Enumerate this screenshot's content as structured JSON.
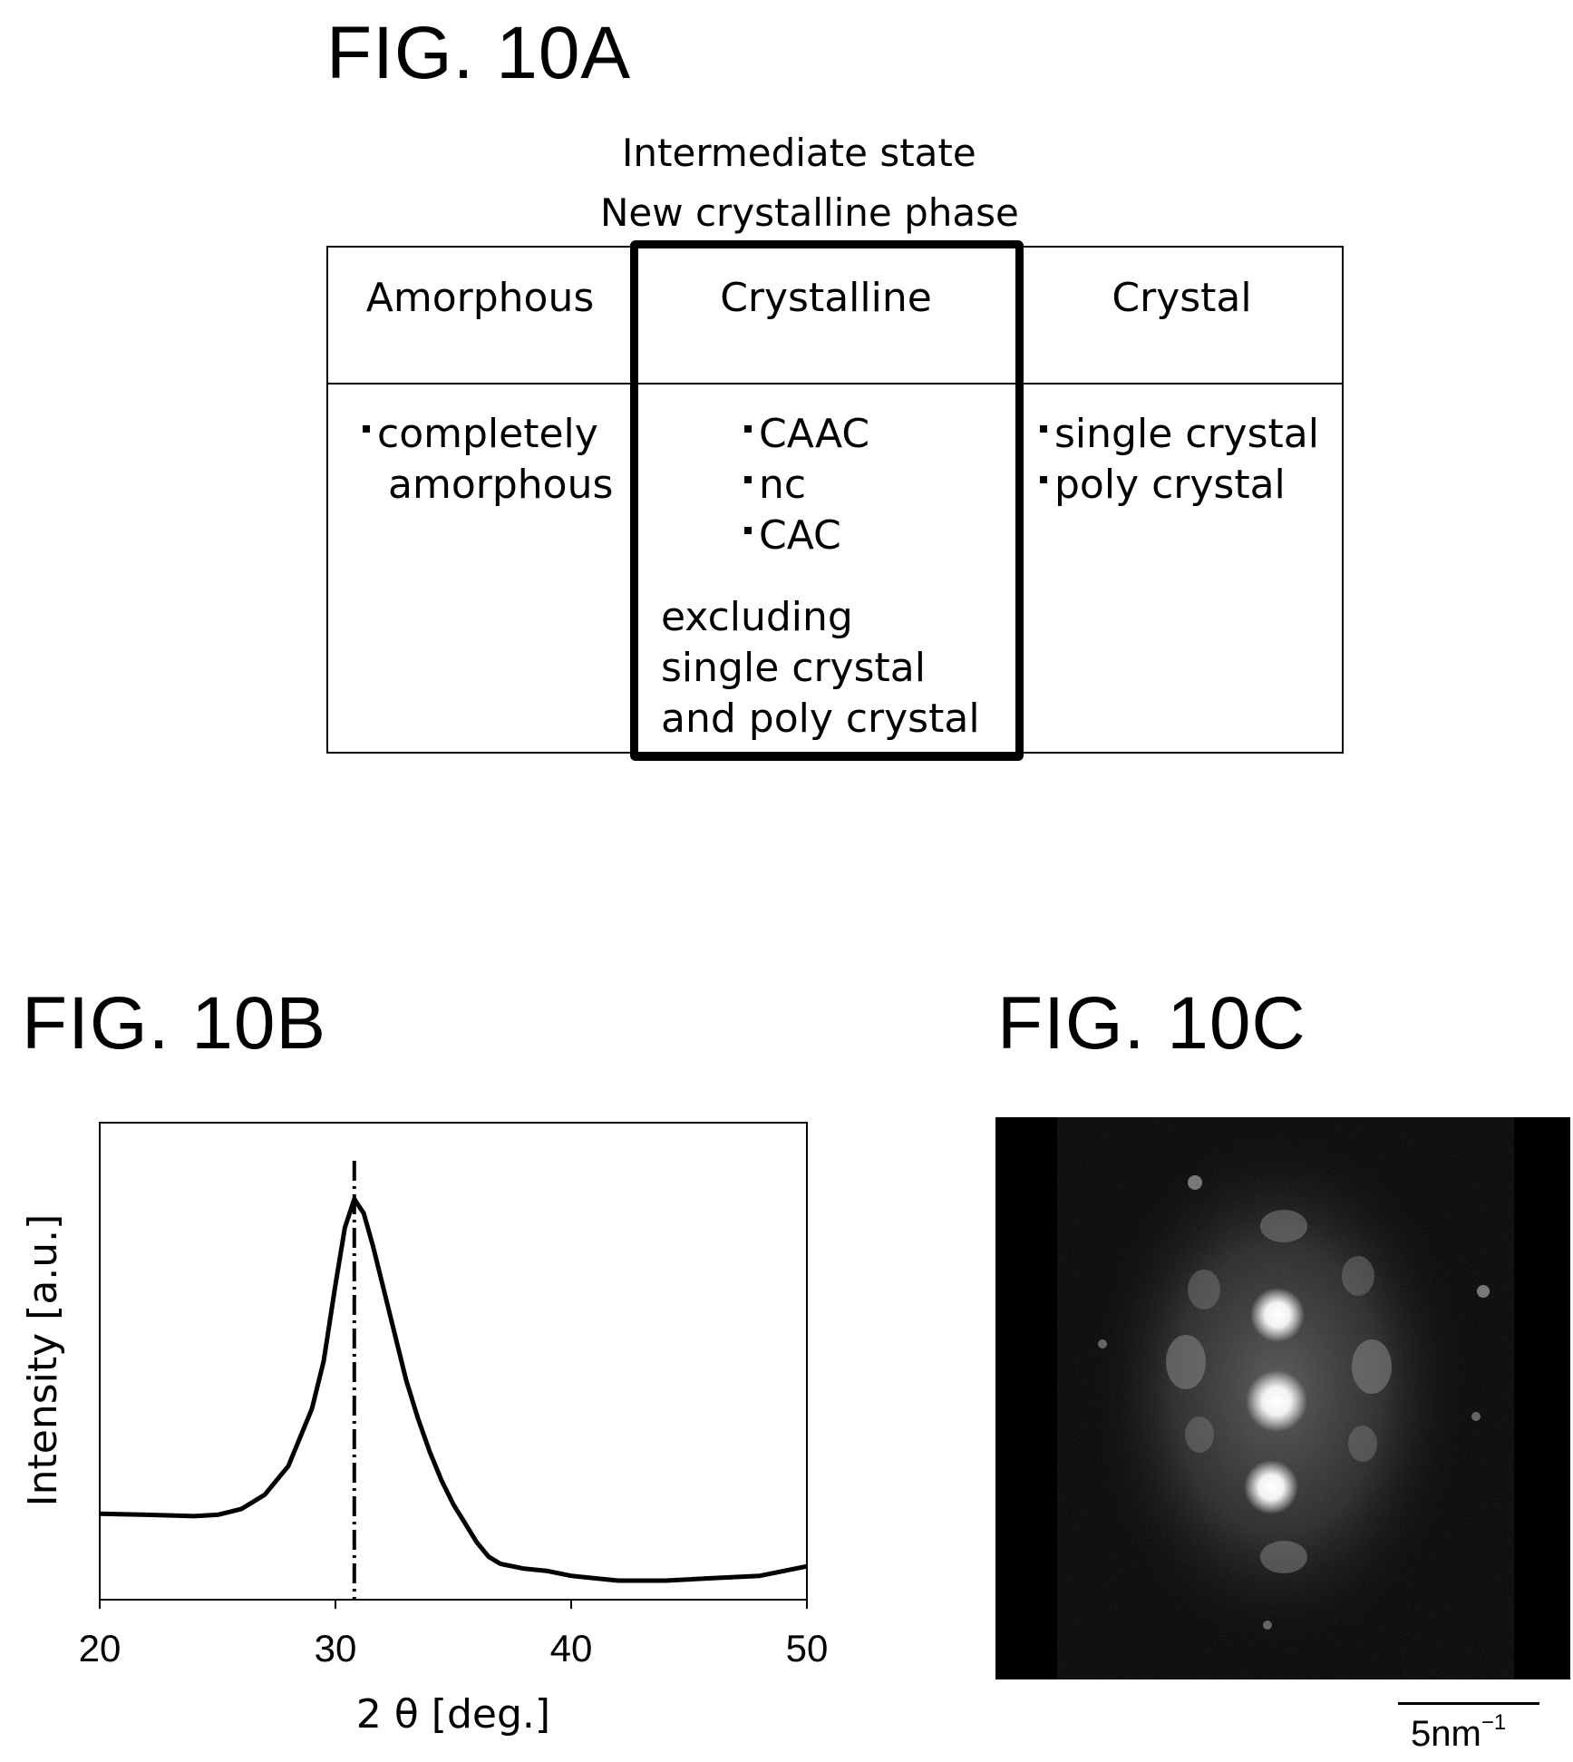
{
  "fig_a": {
    "title": "FIG. 10A",
    "caption_line1": "Intermediate state",
    "caption_line2": "New crystalline phase",
    "columns": [
      {
        "header": "Amorphous",
        "items": [
          "completely",
          "amorphous"
        ]
      },
      {
        "header": "Crystalline",
        "items": [
          "CAAC",
          "nc",
          "CAC"
        ],
        "note": [
          "excluding",
          "single crystal",
          "and poly crystal"
        ]
      },
      {
        "header": "Crystal",
        "items": [
          "single crystal",
          "poly crystal"
        ]
      }
    ]
  },
  "fig_b": {
    "title": "FIG. 10B"
  },
  "fig_c": {
    "title": "FIG. 10C",
    "scale_label": "5nm",
    "scale_exponent": "−1"
  },
  "chart_data": {
    "type": "line",
    "title": "",
    "xlabel": "2 θ [deg.]",
    "ylabel": "Intensity [a.u.]",
    "xlim": [
      20,
      50
    ],
    "ylim": [
      0,
      1
    ],
    "xticks": [
      "20",
      "30",
      "40",
      "50"
    ],
    "peak_marker_x": 30.8,
    "grid": false,
    "series": [
      {
        "x": [
          20,
          22,
          24,
          25,
          26,
          27,
          28,
          29,
          29.5,
          30,
          30.4,
          30.8,
          31.2,
          31.6,
          32,
          32.5,
          33,
          33.5,
          34,
          34.5,
          35,
          35.5,
          36,
          36.5,
          37,
          38,
          39,
          40,
          42,
          44,
          46,
          48,
          50
        ],
        "y": [
          0.18,
          0.178,
          0.175,
          0.178,
          0.19,
          0.22,
          0.28,
          0.4,
          0.5,
          0.66,
          0.78,
          0.84,
          0.81,
          0.74,
          0.66,
          0.56,
          0.46,
          0.38,
          0.31,
          0.25,
          0.2,
          0.16,
          0.12,
          0.09,
          0.075,
          0.065,
          0.06,
          0.05,
          0.04,
          0.04,
          0.045,
          0.05,
          0.07
        ]
      }
    ]
  }
}
